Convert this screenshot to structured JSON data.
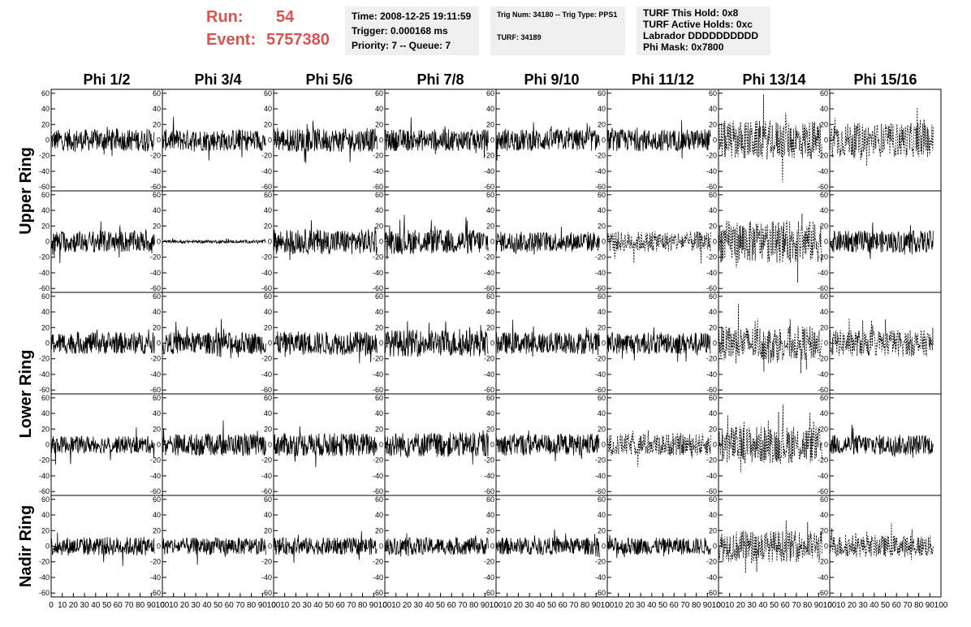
{
  "header": {
    "run_label": "Run:",
    "run_value": "54",
    "event_label": "Event:",
    "event_value": "5757380"
  },
  "info_time": {
    "time": "Time: 2008-12-25 19:11:59",
    "trigger": "Trigger: 0.000168 ms",
    "priority": "Priority: 7 -- Queue: 7"
  },
  "info_trig": {
    "trig": "Trig Num: 34180 -- Trig Type: PPS1",
    "turf": "TURF: 34189"
  },
  "info_turf": {
    "hold": "TURF This Hold: 0x8",
    "active": "TURF Active Holds: 0xc",
    "labrador": "Labrador DDDDDDDDDD",
    "phimask": "Phi Mask: 0x7800"
  },
  "chart_data": {
    "type": "line",
    "columns": [
      "Phi 1/2",
      "Phi 3/4",
      "Phi 5/6",
      "Phi 7/8",
      "Phi 9/10",
      "Phi 11/12",
      "Phi 13/14",
      "Phi 15/16"
    ],
    "rows": [
      "Upper Ring",
      "Lower Ring",
      "Nadir Ring"
    ],
    "xlim": [
      0,
      100
    ],
    "ylim": [
      -65,
      65
    ],
    "x_ticks": [
      "0",
      "10",
      "20",
      "30",
      "40",
      "50",
      "60",
      "70",
      "80",
      "90",
      "100"
    ],
    "y_ticks": [
      60,
      40,
      20,
      0,
      -20,
      -40,
      -60
    ],
    "panels_per_row": 5,
    "row_bands": [
      {
        "label": "Upper Ring",
        "panels": [
          0,
          1
        ]
      },
      {
        "label": "Lower Ring",
        "panels": [
          2,
          3
        ]
      },
      {
        "label": "Nadir Ring",
        "panels": [
          4
        ]
      }
    ],
    "amplitudes": [
      [
        14,
        14,
        15,
        14,
        14,
        14,
        25,
        22
      ],
      [
        14,
        2,
        16,
        16,
        13,
        13,
        27,
        14
      ],
      [
        14,
        14,
        15,
        17,
        14,
        14,
        22,
        17
      ],
      [
        11,
        14,
        15,
        16,
        14,
        14,
        24,
        13
      ],
      [
        12,
        11,
        11,
        11,
        11,
        11,
        20,
        14
      ]
    ],
    "dashed": [
      [
        false,
        false,
        false,
        false,
        false,
        false,
        true,
        true
      ],
      [
        false,
        false,
        false,
        false,
        false,
        true,
        true,
        false
      ],
      [
        false,
        false,
        false,
        false,
        false,
        false,
        true,
        true
      ],
      [
        false,
        false,
        false,
        false,
        false,
        true,
        true,
        false
      ],
      [
        false,
        false,
        false,
        false,
        false,
        false,
        true,
        true
      ]
    ]
  }
}
